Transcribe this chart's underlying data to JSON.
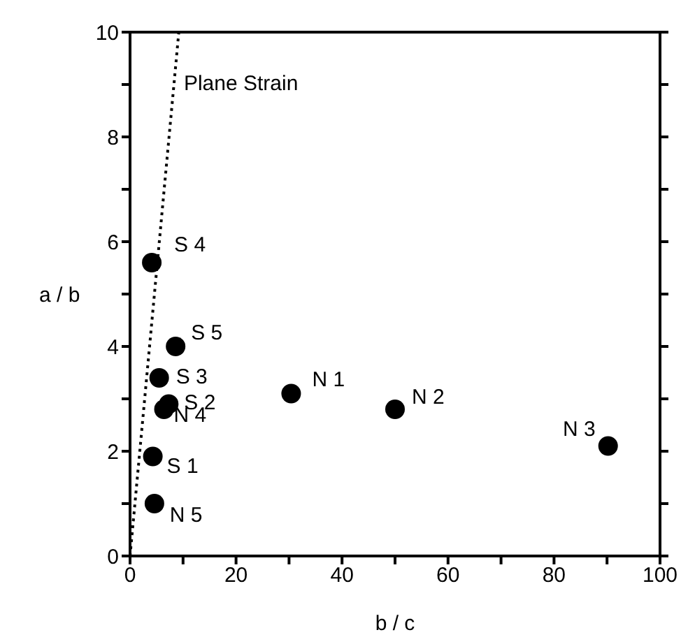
{
  "chart_data": {
    "type": "scatter",
    "xlabel": "b / c",
    "ylabel": "a / b",
    "xlim": [
      0,
      100
    ],
    "xticks": [
      0,
      {
        "value": 10,
        "label": null
      },
      20,
      {
        "value": 30,
        "label": null
      },
      40,
      {
        "value": 50,
        "label": null
      },
      60,
      {
        "value": 70,
        "label": null
      },
      80,
      {
        "value": 90,
        "label": null
      },
      100
    ],
    "ylim": [
      0,
      10
    ],
    "yticks": [
      0,
      {
        "value": 1,
        "label": null
      },
      2,
      {
        "value": 3,
        "label": null
      },
      4,
      {
        "value": 5,
        "label": null
      },
      6,
      {
        "value": 7,
        "label": null
      },
      8,
      {
        "value": 9,
        "label": null
      },
      10
    ],
    "grid": false,
    "legend": false,
    "marker": "circle",
    "series": [
      {
        "color": "#000000",
        "x": [
          4.3,
          7.3,
          5.5,
          4.1,
          8.6,
          30.4,
          50.0,
          90.2,
          6.4,
          4.6
        ],
        "values": [
          1.9,
          2.9,
          3.4,
          5.6,
          4.0,
          3.1,
          2.8,
          2.1,
          2.8,
          1.0
        ]
      },
      {
        "type": "line",
        "color": "#000000",
        "line_style": "dotted",
        "marker": "none",
        "x": [
          0,
          9.2
        ],
        "values": [
          0,
          10
        ]
      }
    ],
    "annotations": [
      {
        "text": "S 1",
        "x": 4.3,
        "y": 1.9
      },
      {
        "text": "S 2",
        "x": 7.3,
        "y": 2.9
      },
      {
        "text": "S 3",
        "x": 5.5,
        "y": 3.4
      },
      {
        "text": "S 4",
        "x": 4.1,
        "y": 5.6
      },
      {
        "text": "S 5",
        "x": 8.6,
        "y": 4.0
      },
      {
        "text": "N 1",
        "x": 30.4,
        "y": 3.1
      },
      {
        "text": "N 2",
        "x": 50.0,
        "y": 2.8
      },
      {
        "text": "N 3",
        "x": 90.2,
        "y": 2.1
      },
      {
        "text": "N 4",
        "x": 6.4,
        "y": 2.8
      },
      {
        "text": "N 5",
        "x": 4.6,
        "y": 1.0
      },
      {
        "text": "Plane Strain",
        "x": 8.3,
        "y": 9.0
      }
    ]
  }
}
